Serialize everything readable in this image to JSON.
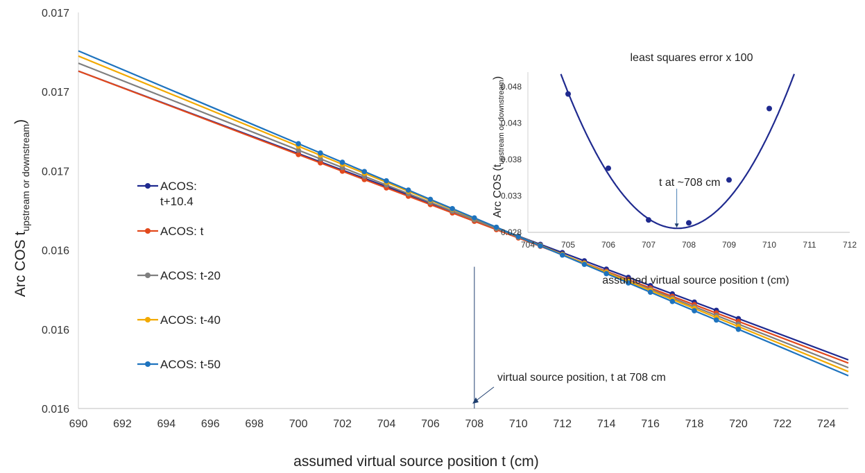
{
  "chart_data": [
    {
      "type": "line",
      "xlabel": "assumed virtual source position t (cm)",
      "ylabel_main": "Arc COS t",
      "ylabel_sub": "upstream or downstream",
      "xlim": [
        690,
        725
      ],
      "ylim": [
        0.016,
        0.017
      ],
      "xticks": [
        690,
        692,
        694,
        696,
        698,
        700,
        702,
        704,
        706,
        708,
        710,
        712,
        714,
        716,
        718,
        720,
        722,
        724
      ],
      "yticks": [
        0.016,
        0.0162,
        0.0164,
        0.0166,
        0.0168,
        0.017
      ],
      "ytick_labels": [
        "0.016",
        "0.016",
        "0.016",
        "0.017",
        "0.017",
        "0.017"
      ],
      "marker_x": [
        700,
        701,
        702,
        703,
        704,
        705,
        706,
        707,
        708,
        709,
        710,
        711,
        712,
        713,
        714,
        715,
        716,
        717,
        718,
        719,
        720
      ],
      "series": [
        {
          "name": "ACOS: t+10.4",
          "color": "#1f2a8f",
          "y_at_690": 0.016852,
          "y_at_720": 0.016227
        },
        {
          "name": "ACOS: t",
          "color": "#e2491c",
          "y_at_690": 0.016852,
          "y_at_720": 0.01622
        },
        {
          "name": "ACOS: t-20",
          "color": "#7f7f7f",
          "y_at_690": 0.016872,
          "y_at_720": 0.016213
        },
        {
          "name": "ACOS: t-40",
          "color": "#f2a900",
          "y_at_690": 0.01689,
          "y_at_720": 0.016207
        },
        {
          "name": "ACOS: t-50",
          "color": "#1e73be",
          "y_at_690": 0.016903,
          "y_at_720": 0.0162
        }
      ],
      "legend_labels": [
        [
          "ACOS:",
          "t+10.4"
        ],
        [
          "ACOS: t"
        ],
        [
          "ACOS: t-20"
        ],
        [
          "ACOS: t-40"
        ],
        [
          "ACOS: t-50"
        ]
      ],
      "annotation": "virtual source position, t  at 708 cm",
      "annotation_x": 708
    },
    {
      "type": "line",
      "title": "least squares error x 100",
      "xlabel": "assumed virtual source position t (cm)",
      "ylabel_main": "Arc COS (t",
      "ylabel_sub": "upstream or downstream",
      "ylabel_end": ")",
      "xlim": [
        704,
        712
      ],
      "ylim": [
        0.028,
        0.05
      ],
      "xticks": [
        704,
        705,
        706,
        707,
        708,
        709,
        710,
        711,
        712
      ],
      "yticks": [
        0.028,
        0.033,
        0.038,
        0.043,
        0.048
      ],
      "ytick_labels": [
        "0.028",
        "0.033",
        "0.038",
        "0.043",
        "0.048"
      ],
      "points": [
        [
          705,
          0.047
        ],
        [
          706,
          0.0368
        ],
        [
          707,
          0.0297
        ],
        [
          708,
          0.0293
        ],
        [
          709,
          0.0352
        ],
        [
          710,
          0.045
        ]
      ],
      "curve": {
        "a": 0.00252,
        "vertex_x": 707.72,
        "vertex_y": 0.02855
      },
      "color": "#1f2a8f",
      "annotation": "t  at ~708 cm",
      "annotation_x": 707.7
    }
  ]
}
